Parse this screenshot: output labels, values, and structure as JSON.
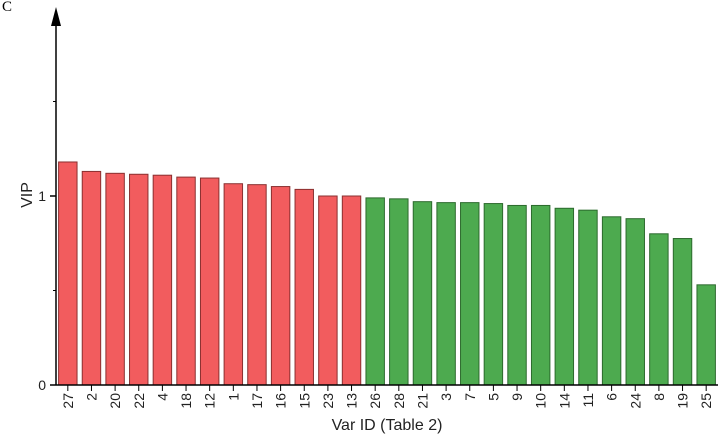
{
  "panel_label": "C",
  "chart_data": {
    "type": "bar",
    "xlabel": "Var ID (Table 2)",
    "ylabel": "VIP",
    "ylim": [
      0,
      1.95
    ],
    "yticks": [
      0,
      1
    ],
    "grid": false,
    "categories": [
      "27",
      "2",
      "20",
      "22",
      "4",
      "18",
      "12",
      "1",
      "17",
      "16",
      "15",
      "23",
      "13",
      "26",
      "28",
      "21",
      "3",
      "7",
      "5",
      "9",
      "10",
      "14",
      "11",
      "6",
      "24",
      "8",
      "19",
      "25"
    ],
    "values": [
      1.18,
      1.13,
      1.12,
      1.115,
      1.11,
      1.1,
      1.095,
      1.065,
      1.06,
      1.05,
      1.035,
      1.0,
      1.0,
      0.99,
      0.985,
      0.97,
      0.965,
      0.965,
      0.96,
      0.95,
      0.95,
      0.935,
      0.925,
      0.89,
      0.88,
      0.8,
      0.775,
      0.53
    ],
    "threshold": 1,
    "colors": {
      "above": "#f25c5e",
      "above_stroke": "#8a3030",
      "below": "#4daa4f",
      "below_stroke": "#2c6a2d",
      "axis": "#000000"
    }
  }
}
